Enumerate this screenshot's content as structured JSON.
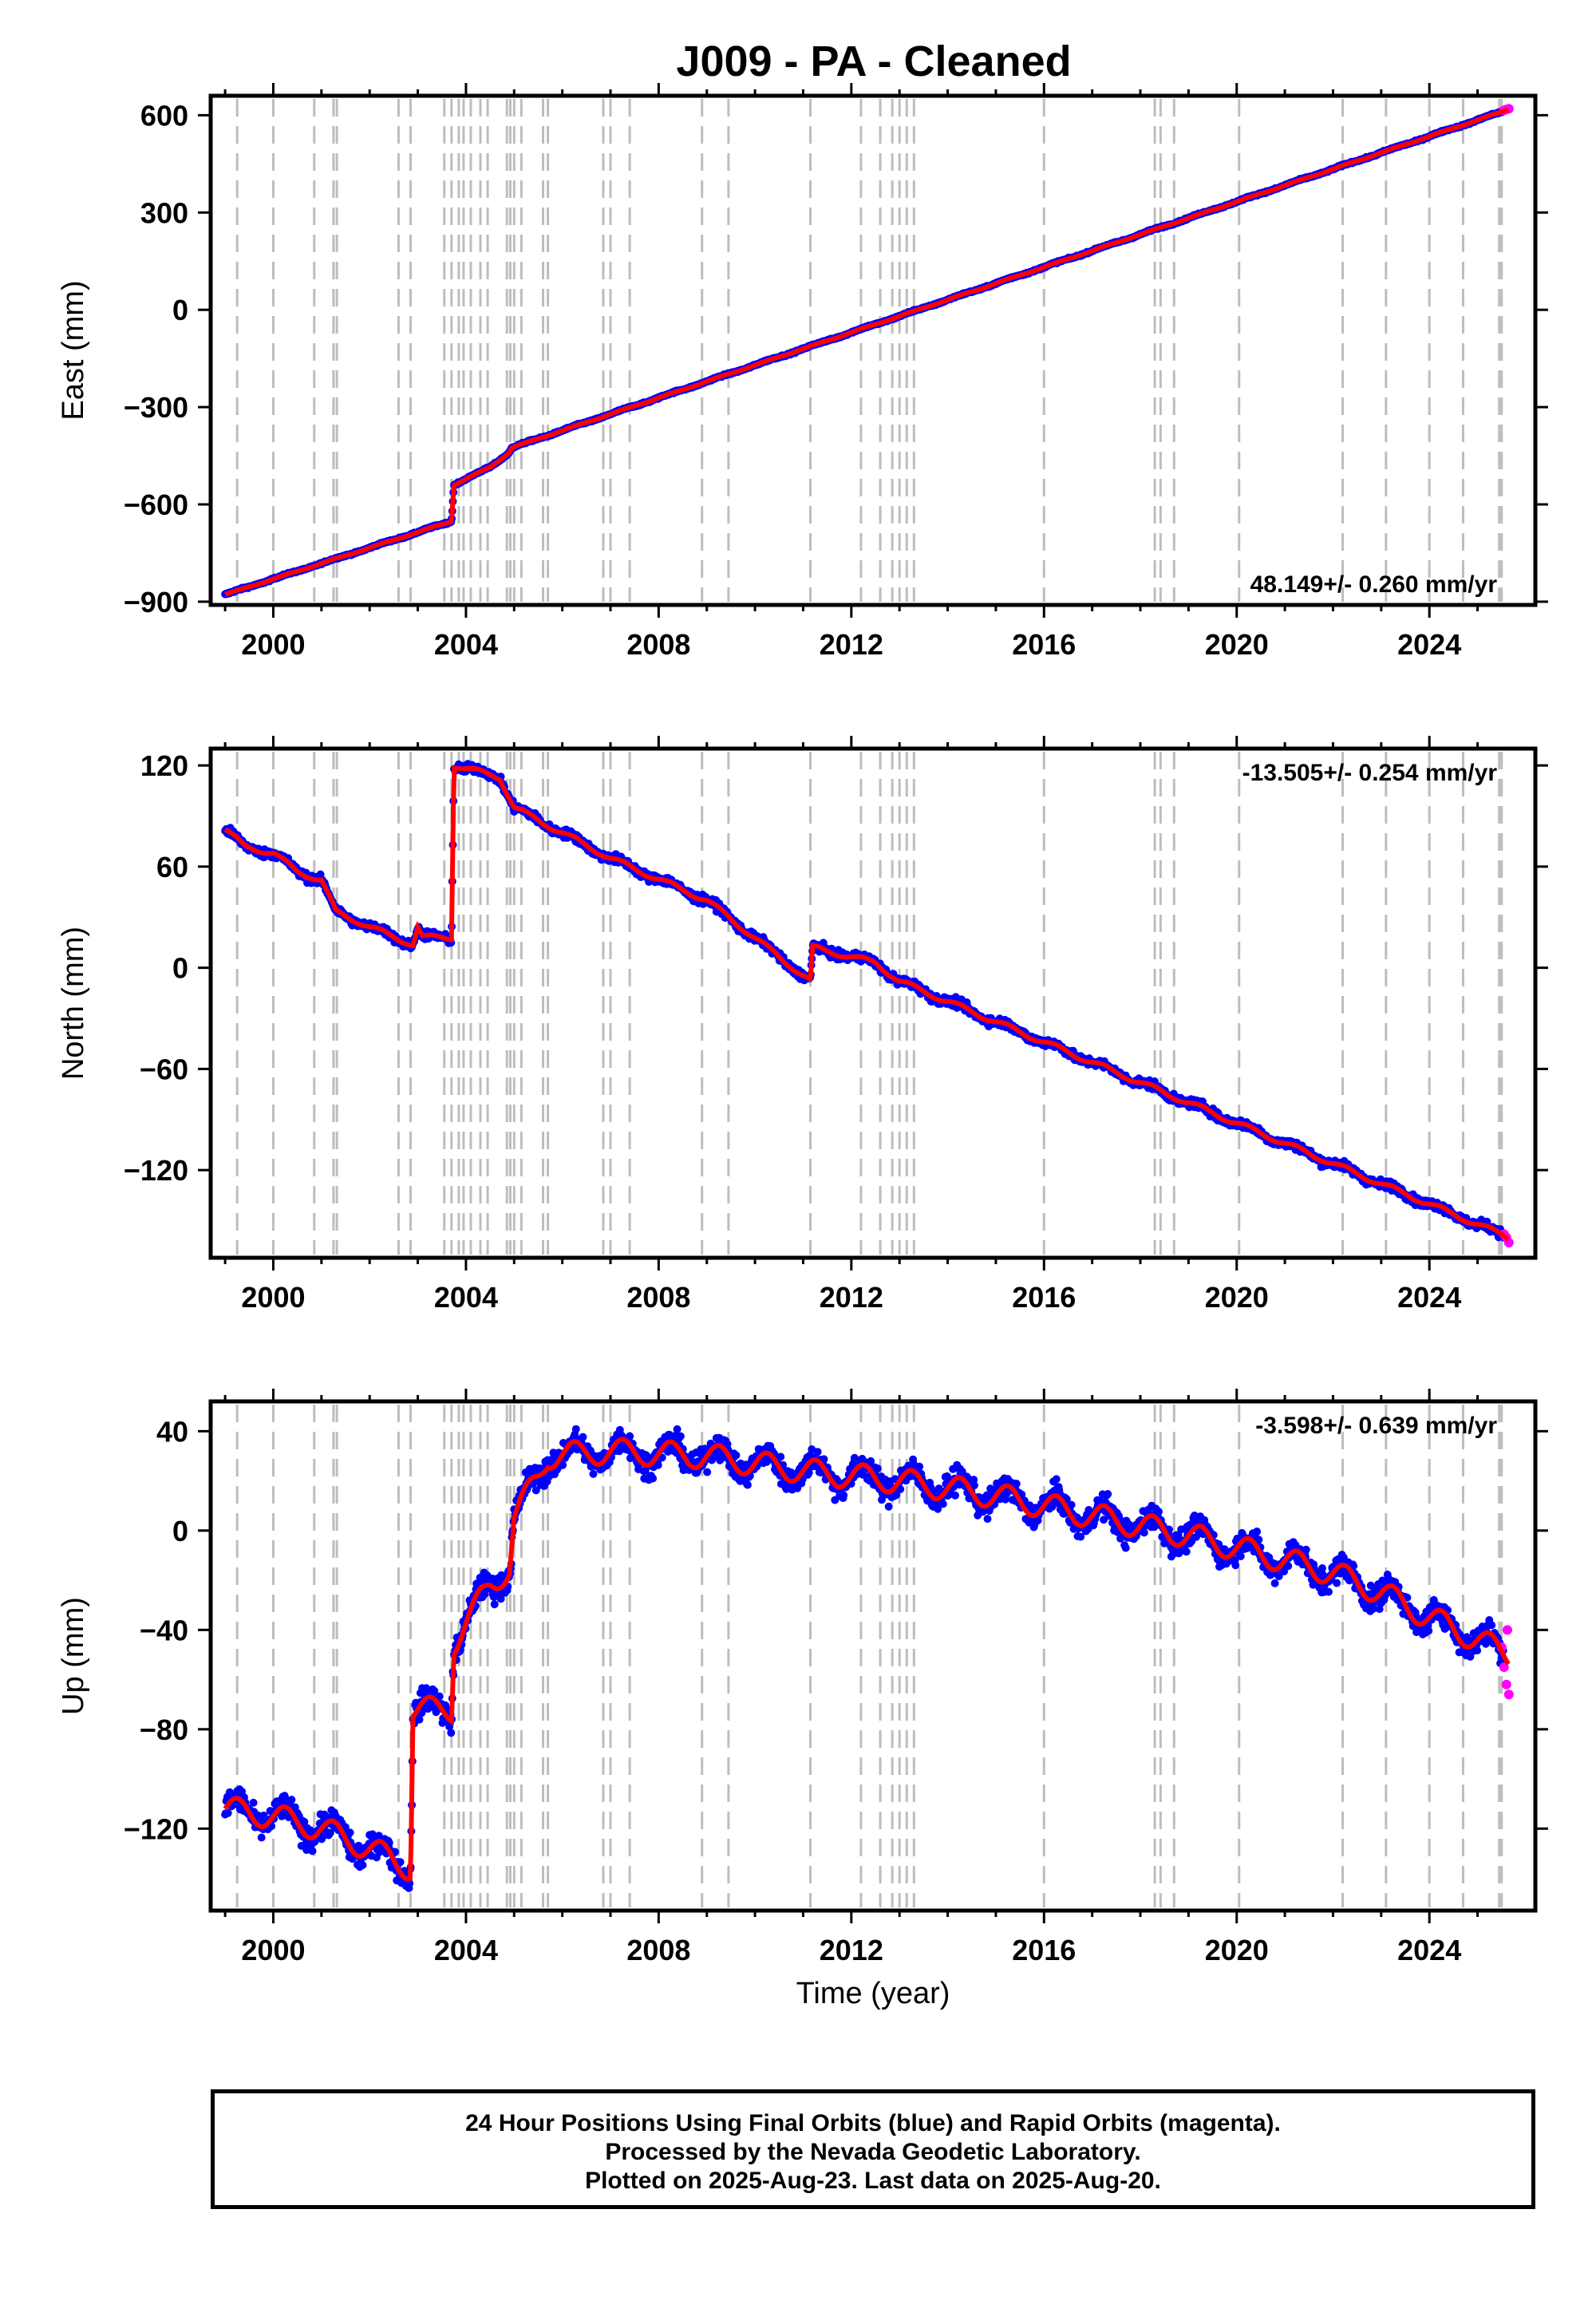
{
  "title": "J009  - PA - Cleaned",
  "footer": {
    "line1": "24 Hour Positions Using Final Orbits (blue) and Rapid Orbits (magenta).",
    "line2": "Processed by the Nevada Geodetic Laboratory.",
    "line3": "Plotted on 2025-Aug-23. Last data on 2025-Aug-20."
  },
  "colors": {
    "final": "#0000ff",
    "rapid": "#ff00ff",
    "model": "#ff0000",
    "event_line": "#bdbdbd",
    "axis": "#000000"
  },
  "chart_data": [
    {
      "type": "scatter",
      "component": "east",
      "ylabel": "East (mm)",
      "xlabel": "",
      "xlim": [
        1998.7,
        2026.2
      ],
      "ylim": [
        -910,
        660
      ],
      "xticks": [
        2000,
        2004,
        2008,
        2012,
        2016,
        2020,
        2024
      ],
      "yticks": [
        600,
        300,
        0,
        -300,
        -600,
        -900
      ],
      "ytick_labels": [
        "600",
        "300",
        "0",
        "−300",
        "−600",
        "−900"
      ],
      "rate_label": "48.149+/- 0.260 mm/yr",
      "rate_label_position": "bottom-right",
      "grid": false,
      "model_trend": [
        [
          1999.0,
          -878
        ],
        [
          2003.7,
          -652
        ],
        [
          2003.75,
          -540
        ],
        [
          2004.5,
          -485
        ],
        [
          2004.9,
          -440
        ],
        [
          2004.95,
          -425
        ],
        [
          2025.65,
          618
        ]
      ],
      "noise_mm": 3,
      "rapid_orbit_points": [
        [
          2025.55,
          615
        ],
        [
          2025.6,
          618
        ],
        [
          2025.65,
          620
        ]
      ]
    },
    {
      "type": "scatter",
      "component": "north",
      "ylabel": "North (mm)",
      "xlabel": "",
      "xlim": [
        1998.7,
        2026.2
      ],
      "ylim": [
        -172,
        130
      ],
      "xticks": [
        2000,
        2004,
        2008,
        2012,
        2016,
        2020,
        2024
      ],
      "yticks": [
        120,
        60,
        0,
        -60,
        -120
      ],
      "ytick_labels": [
        "120",
        "60",
        "0",
        "−60",
        "−120"
      ],
      "rate_label": "-13.505+/- 0.254 mm/yr",
      "rate_label_position": "top-right",
      "grid": false,
      "model_trend": [
        [
          1999.0,
          82
        ],
        [
          1999.4,
          72
        ],
        [
          2000.0,
          68
        ],
        [
          2000.5,
          57
        ],
        [
          2001.0,
          52
        ],
        [
          2001.3,
          33
        ],
        [
          2001.8,
          27
        ],
        [
          2002.5,
          18
        ],
        [
          2002.9,
          14
        ],
        [
          2003.0,
          24
        ],
        [
          2003.1,
          18
        ],
        [
          2003.7,
          18
        ],
        [
          2003.75,
          120
        ],
        [
          2004.7,
          113
        ],
        [
          2005.0,
          95
        ],
        [
          2007.0,
          65
        ],
        [
          2009.0,
          40
        ],
        [
          2011.15,
          -8
        ],
        [
          2011.2,
          12
        ],
        [
          2012.5,
          3
        ],
        [
          2013.0,
          -8
        ],
        [
          2025.65,
          -160
        ]
      ],
      "noise_mm": 3,
      "rapid_orbit_points": [
        [
          2025.55,
          -158
        ],
        [
          2025.6,
          -160
        ],
        [
          2025.65,
          -163
        ]
      ]
    },
    {
      "type": "scatter",
      "component": "up",
      "ylabel": "Up (mm)",
      "xlabel": "Time (year)",
      "xlim": [
        1998.7,
        2026.2
      ],
      "ylim": [
        -153,
        52
      ],
      "xticks": [
        2000,
        2004,
        2008,
        2012,
        2016,
        2020,
        2024
      ],
      "yticks": [
        40,
        0,
        -40,
        -80,
        -120
      ],
      "ytick_labels": [
        "40",
        "0",
        "−40",
        "−80",
        "−120"
      ],
      "rate_label": "-3.598+/- 0.639 mm/yr",
      "rate_label_position": "top-right",
      "grid": false,
      "model_trend": [
        [
          1999.0,
          -112
        ],
        [
          2000.0,
          -115
        ],
        [
          2001.0,
          -120
        ],
        [
          2002.0,
          -128
        ],
        [
          2002.85,
          -136
        ],
        [
          2002.9,
          -72
        ],
        [
          2003.7,
          -72
        ],
        [
          2003.75,
          -45
        ],
        [
          2004.5,
          -22
        ],
        [
          2004.9,
          -15
        ],
        [
          2005.0,
          5
        ],
        [
          2005.5,
          22
        ],
        [
          2005.7,
          30
        ],
        [
          2007.0,
          32
        ],
        [
          2009.0,
          30
        ],
        [
          2011.0,
          24
        ],
        [
          2013.0,
          20
        ],
        [
          2015.0,
          14
        ],
        [
          2017.0,
          6
        ],
        [
          2019.0,
          -2
        ],
        [
          2021.0,
          -12
        ],
        [
          2022.0,
          -17
        ],
        [
          2023.0,
          -25
        ],
        [
          2024.0,
          -35
        ],
        [
          2025.0,
          -44
        ],
        [
          2025.65,
          -50
        ]
      ],
      "seasonal_amplitude_mm": 5,
      "noise_mm": 6,
      "rapid_orbit_points": [
        [
          2025.5,
          -47
        ],
        [
          2025.55,
          -55
        ],
        [
          2025.6,
          -62
        ],
        [
          2025.62,
          -40
        ],
        [
          2025.65,
          -66
        ]
      ]
    }
  ],
  "event_dates": [
    1999.25,
    2000.0,
    2000.85,
    2001.25,
    2001.32,
    2002.6,
    2002.85,
    2003.55,
    2003.7,
    2003.85,
    2003.95,
    2004.1,
    2004.3,
    2004.45,
    2004.85,
    2004.92,
    2005.0,
    2005.15,
    2005.6,
    2005.7,
    2006.85,
    2007.0,
    2007.4,
    2008.9,
    2009.45,
    2011.15,
    2012.2,
    2012.6,
    2012.85,
    2013.0,
    2013.15,
    2013.3,
    2016.0,
    2018.3,
    2018.42,
    2018.7,
    2020.05,
    2022.2,
    2023.1,
    2024.0,
    2024.7,
    2025.45,
    2025.5
  ]
}
